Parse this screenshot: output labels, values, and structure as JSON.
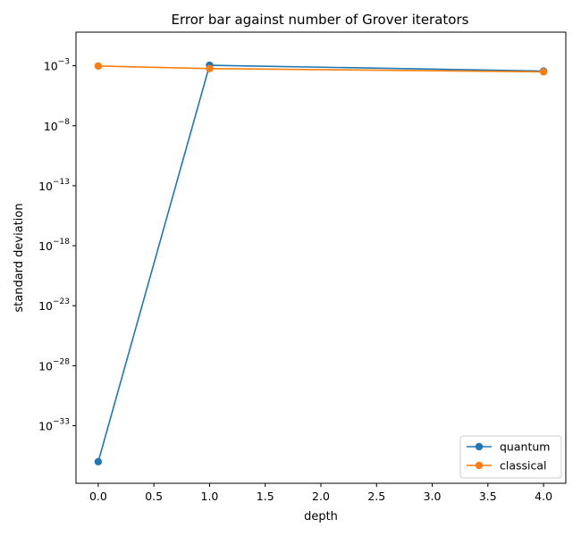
{
  "chart_data": {
    "type": "line",
    "title": "Error bar against number of Grover iterators",
    "xlabel": "depth",
    "ylabel": "standard deviation",
    "xlim": [
      -0.2,
      4.2
    ],
    "ylim_log10": [
      -37.8,
      -0.2
    ],
    "y_scale": "log",
    "grid": false,
    "legend_position": "lower-right",
    "x_ticks": [
      {
        "value": 0.0,
        "label": "0.0"
      },
      {
        "value": 0.5,
        "label": "0.5"
      },
      {
        "value": 1.0,
        "label": "1.0"
      },
      {
        "value": 1.5,
        "label": "1.5"
      },
      {
        "value": 2.0,
        "label": "2.0"
      },
      {
        "value": 2.5,
        "label": "2.5"
      },
      {
        "value": 3.0,
        "label": "3.0"
      },
      {
        "value": 3.5,
        "label": "3.5"
      },
      {
        "value": 4.0,
        "label": "4.0"
      }
    ],
    "y_ticks": [
      {
        "exp": -3,
        "base": "10",
        "sup": "−3"
      },
      {
        "exp": -8,
        "base": "10",
        "sup": "−8"
      },
      {
        "exp": -13,
        "base": "10",
        "sup": "−13"
      },
      {
        "exp": -18,
        "base": "10",
        "sup": "−18"
      },
      {
        "exp": -23,
        "base": "10",
        "sup": "−23"
      },
      {
        "exp": -28,
        "base": "10",
        "sup": "−28"
      },
      {
        "exp": -33,
        "base": "10",
        "sup": "−33"
      }
    ],
    "series": [
      {
        "name": "quantum",
        "color": "#1f77b4",
        "x": [
          0,
          1,
          4
        ],
        "y": [
          1e-36,
          0.0011,
          0.00036
        ]
      },
      {
        "name": "classical",
        "color": "#ff7f0e",
        "x": [
          0,
          1,
          4
        ],
        "y": [
          0.00095,
          0.00058,
          0.00031
        ]
      }
    ]
  }
}
